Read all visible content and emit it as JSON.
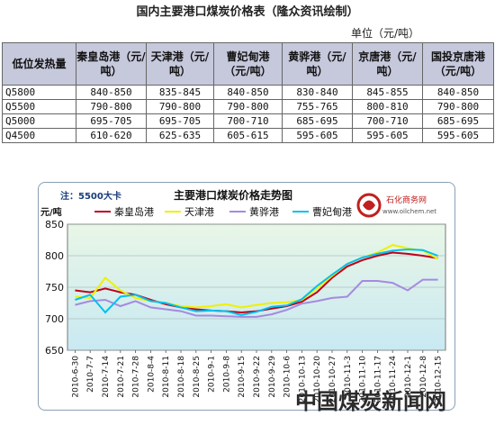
{
  "header": {
    "title": "国内主要港口煤炭价格表（隆众资讯绘制）",
    "unit": "单位（元/吨）"
  },
  "table": {
    "columns": [
      "低位发热量",
      "秦皇岛港（元/吨）",
      "天津港（元/吨）",
      "曹妃甸港（元/吨）",
      "黄骅港（元/吨）",
      "京唐港（元/吨）",
      "国投京唐港（元/吨）"
    ],
    "rows": [
      [
        "Q5800",
        "840-850",
        "835-845",
        "840-850",
        "830-840",
        "845-855",
        "840-850"
      ],
      [
        "Q5500",
        "790-800",
        "790-800",
        "790-800",
        "755-765",
        "800-810",
        "790-800"
      ],
      [
        "Q5000",
        "695-705",
        "695-705",
        "700-710",
        "685-695",
        "700-710",
        "685-695"
      ],
      [
        "Q4500",
        "610-620",
        "625-635",
        "605-615",
        "595-605",
        "595-605",
        "595-605"
      ]
    ]
  },
  "chart_data": {
    "type": "line",
    "title": "主要港口煤炭价格走势图",
    "note": "注：5500大卡",
    "ylabel": "元/吨",
    "ylim": [
      650,
      850
    ],
    "yticks": [
      650,
      700,
      750,
      800,
      850
    ],
    "legend_position": "top",
    "grid": true,
    "x": [
      "2010-6-30",
      "2010-7-7",
      "2010-7-14",
      "2010-7-21",
      "2010-7-28",
      "2010-8-4",
      "2010-8-11",
      "2010-8-18",
      "2010-8-25",
      "2010-9-1",
      "2010-9-8",
      "2010-9-15",
      "2010-9-22",
      "2010-9-29",
      "2010-10-6",
      "2010-10-13",
      "2010-10-20",
      "2010-10-27",
      "2010-11-3",
      "2010-11-10",
      "2010-11-17",
      "2010-11-24",
      "2010-12-1",
      "2010-12-8",
      "2010-12-15"
    ],
    "series": [
      {
        "name": "秦皇岛港",
        "color": "#c0001a",
        "values": [
          745,
          742,
          748,
          742,
          738,
          730,
          723,
          718,
          715,
          713,
          712,
          710,
          712,
          716,
          720,
          727,
          742,
          765,
          783,
          793,
          800,
          805,
          803,
          800,
          796
        ]
      },
      {
        "name": "天津港",
        "color": "#f0f000",
        "values": [
          735,
          733,
          765,
          745,
          733,
          728,
          725,
          720,
          718,
          720,
          723,
          718,
          722,
          725,
          726,
          730,
          748,
          768,
          787,
          797,
          805,
          817,
          812,
          808,
          795
        ]
      },
      {
        "name": "黄骅港",
        "color": "#a58ae0",
        "values": [
          722,
          728,
          730,
          720,
          728,
          718,
          715,
          712,
          705,
          705,
          704,
          703,
          703,
          707,
          714,
          724,
          728,
          733,
          735,
          760,
          760,
          757,
          745,
          762,
          762
        ]
      },
      {
        "name": "曹妃甸港",
        "color": "#00c0f0",
        "values": [
          730,
          738,
          710,
          735,
          738,
          728,
          725,
          718,
          712,
          713,
          712,
          706,
          711,
          719,
          721,
          731,
          752,
          770,
          787,
          797,
          803,
          808,
          810,
          809,
          800
        ]
      }
    ]
  },
  "logo": {
    "name": "石化商务网",
    "url": "www.oilchem.net"
  },
  "watermark": "中国煤炭新闻网"
}
